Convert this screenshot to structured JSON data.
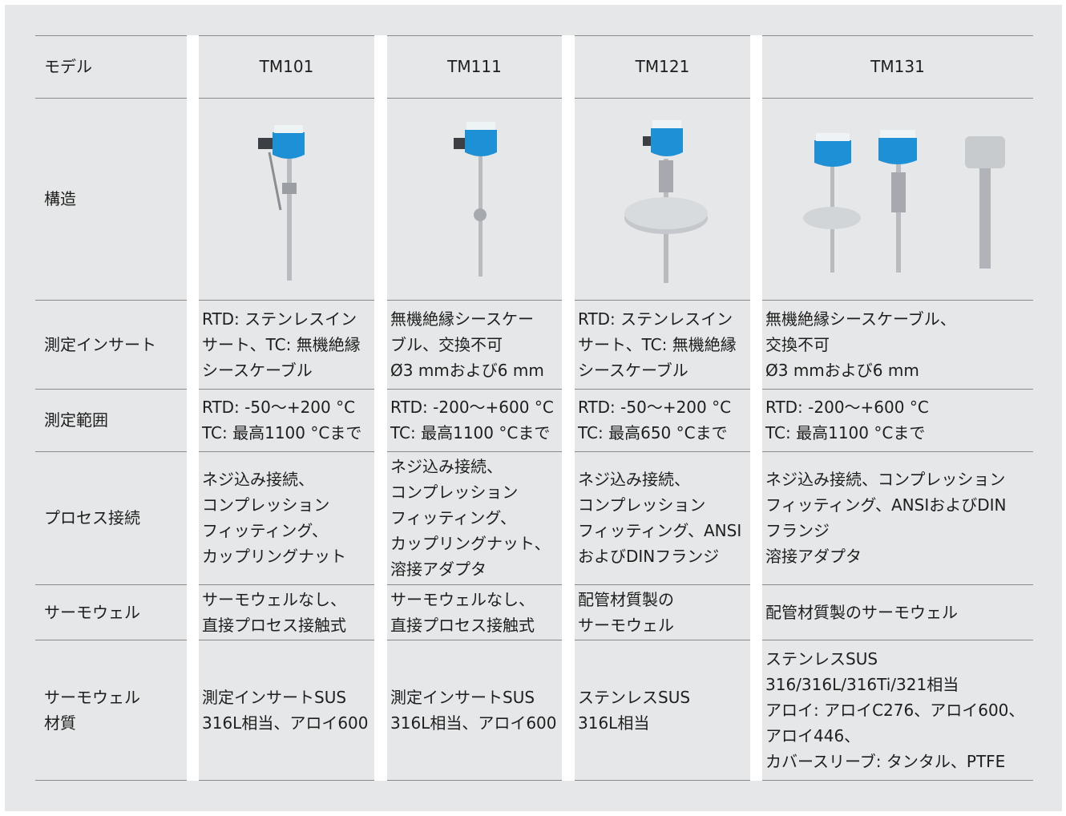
{
  "header": {
    "label": "モデル",
    "models": [
      "TM101",
      "TM111",
      "TM121",
      "TM131"
    ]
  },
  "structure_label": "構造",
  "rows": [
    {
      "label": [
        "測定インサート"
      ],
      "cells": [
        [
          "RTD: ステンレスイン",
          "サート、TC: 無機絶縁",
          "シースケーブル"
        ],
        [
          "無機絶縁シースケー",
          "ブル、交換不可",
          "Ø3 mmおよび6 mm"
        ],
        [
          "RTD: ステンレスイン",
          "サート、TC: 無機絶縁",
          "シースケーブル"
        ],
        [
          "無機絶縁シースケーブル、",
          "交換不可",
          "Ø3 mmおよび6 mm"
        ]
      ]
    },
    {
      "label": [
        "測定範囲"
      ],
      "cells": [
        [
          "RTD: -50～+200 °C",
          "TC: 最高1100 °Cまで"
        ],
        [
          "RTD: -200～+600 °C",
          "TC: 最高1100 °Cまで"
        ],
        [
          "RTD: -50～+200 °C",
          "TC: 最高650 °Cまで"
        ],
        [
          "RTD: -200～+600 °C",
          "TC: 最高1100 °Cまで"
        ]
      ]
    },
    {
      "label": [
        "プロセス接続"
      ],
      "cells": [
        [
          "ネジ込み接続、",
          "コンプレッション",
          "フィッティング、",
          "カップリングナット"
        ],
        [
          "ネジ込み接続、",
          "コンプレッション",
          "フィッティング、",
          "カップリングナット、",
          "溶接アダプタ"
        ],
        [
          "ネジ込み接続、",
          "コンプレッション",
          "フィッティング、ANSI",
          "およびDINフランジ"
        ],
        [
          "ネジ込み接続、コンプレッション",
          "フィッティング、ANSIおよびDIN",
          "フランジ",
          "溶接アダプタ"
        ]
      ]
    },
    {
      "label": [
        "サーモウェル"
      ],
      "cells": [
        [
          "サーモウェルなし、",
          "直接プロセス接触式"
        ],
        [
          "サーモウェルなし、",
          "直接プロセス接触式"
        ],
        [
          "配管材質製の",
          "サーモウェル"
        ],
        [
          "配管材質製のサーモウェル"
        ]
      ]
    },
    {
      "label": [
        "サーモウェル",
        "材質"
      ],
      "cells": [
        [
          "測定インサートSUS",
          "316L相当、アロイ600"
        ],
        [
          "測定インサートSUS",
          "316L相当、アロイ600"
        ],
        [
          "ステンレスSUS",
          "316L相当"
        ],
        [
          "ステンレスSUS",
          "316/316L/316Ti/321相当",
          "アロイ: アロイC276、アロイ600、",
          "アロイ446、",
          "カバースリーブ: タンタル、PTFE"
        ]
      ]
    }
  ]
}
